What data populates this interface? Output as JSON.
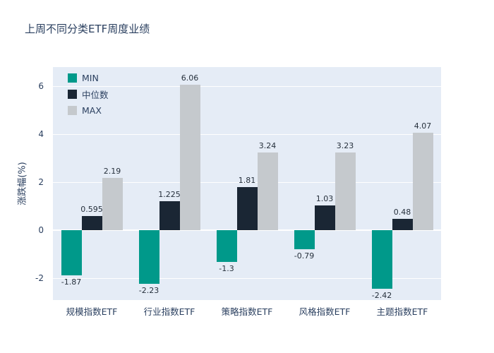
{
  "chart_data": {
    "type": "bar",
    "title": "上周不同分类ETF周度业绩",
    "xlabel": "",
    "ylabel": "涨跌幅(%)",
    "categories": [
      "规模指数ETF",
      "行业指数ETF",
      "策略指数ETF",
      "风格指数ETF",
      "主题指数ETF"
    ],
    "series": [
      {
        "name": "MIN",
        "color": "#00998a",
        "values": [
          -1.87,
          -2.23,
          -1.3,
          -0.79,
          -2.42
        ]
      },
      {
        "name": "中位数",
        "color": "#1a2634",
        "values": [
          0.595,
          1.225,
          1.81,
          1.03,
          0.48
        ]
      },
      {
        "name": "MAX",
        "color": "#c5c9cd",
        "values": [
          2.19,
          6.06,
          3.24,
          3.23,
          4.07
        ]
      }
    ],
    "yticks": [
      -2,
      0,
      2,
      4,
      6
    ],
    "ylim": [
      -2.9,
      6.8
    ],
    "legend_position": "top-left",
    "grid": true,
    "plot_background": "#e5ecf6",
    "text_color": "#2a3f5f"
  }
}
